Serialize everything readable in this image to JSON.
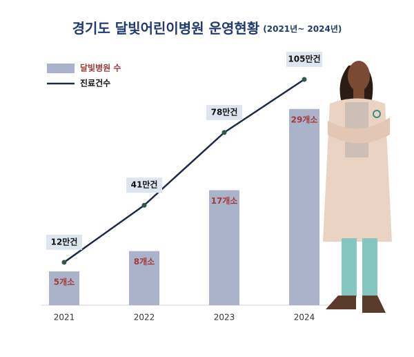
{
  "chart_data": {
    "type": "bar_line",
    "title": "경기도 달빛어린이병원 운영현황",
    "subtitle": "(2021년~ 2024년)",
    "categories": [
      "2021",
      "2022",
      "2023",
      "2024"
    ],
    "series": [
      {
        "name": "달빛병원 수",
        "type": "bar",
        "color": "#aab3c9",
        "values": [
          5,
          8,
          17,
          29
        ],
        "value_labels": [
          "5개소",
          "8개소",
          "17개소",
          "29개소"
        ]
      },
      {
        "name": "진료건수",
        "type": "line",
        "axis": "y2",
        "color": "#1b2a4a",
        "values": [
          12,
          41,
          78,
          105
        ],
        "value_labels": [
          "12만건",
          "41만건",
          "78만건",
          "105만건"
        ]
      }
    ],
    "ylim": [
      0,
      30
    ],
    "y2lim": [
      0,
      105
    ],
    "legend": "top-left"
  }
}
